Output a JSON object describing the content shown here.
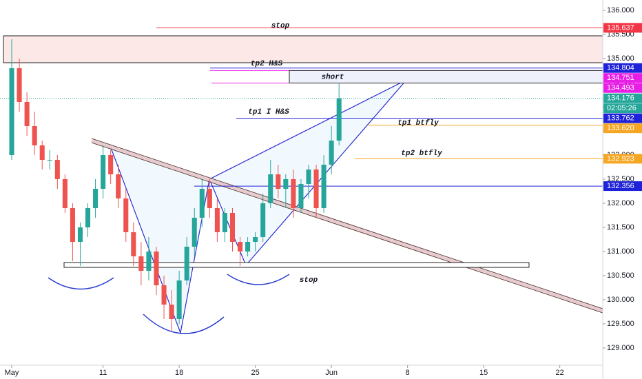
{
  "chart_data": {
    "type": "candlestick",
    "up_color": "#26a69a",
    "down_color": "#ef5350",
    "x": [
      0,
      0.5,
      1,
      1.5,
      2,
      2.5,
      3,
      3.5,
      4,
      4.5,
      5,
      5.5,
      6,
      6.5,
      7,
      7.5,
      8,
      8.5,
      9,
      9.5,
      10,
      10.5,
      11,
      11.5,
      12,
      12.5,
      13,
      13.5,
      14,
      14.5,
      15,
      15.5,
      16,
      16.5,
      17,
      17.5,
      18,
      18.5,
      19,
      19.5,
      20,
      20.5,
      21,
      21.5
    ],
    "open": [
      133.0,
      134.8,
      134.1,
      133.6,
      133.2,
      132.9,
      132.9,
      132.5,
      131.9,
      131.2,
      131.5,
      131.9,
      132.3,
      133.0,
      132.6,
      132.1,
      131.4,
      130.9,
      130.6,
      131.0,
      130.3,
      129.9,
      129.6,
      130.4,
      131.1,
      131.7,
      132.3,
      131.9,
      131.4,
      131.8,
      131.2,
      131.0,
      131.2,
      131.3,
      132.0,
      132.6,
      132.3,
      132.5,
      131.9,
      132.4,
      132.7,
      131.9,
      132.8,
      133.3
    ],
    "high": [
      135.4,
      135.0,
      134.3,
      133.9,
      133.3,
      133.1,
      133.0,
      132.6,
      132.0,
      131.6,
      132.0,
      132.5,
      133.2,
      133.1,
      132.8,
      132.3,
      131.6,
      131.2,
      131.3,
      131.1,
      130.5,
      130.2,
      130.6,
      131.3,
      131.9,
      132.5,
      132.5,
      132.1,
      131.9,
      131.9,
      131.3,
      131.3,
      131.4,
      132.2,
      132.9,
      132.8,
      132.6,
      132.7,
      132.5,
      132.8,
      132.8,
      133.0,
      133.6,
      134.5
    ],
    "low": [
      132.9,
      133.9,
      133.4,
      133.0,
      132.7,
      132.7,
      132.3,
      131.8,
      130.8,
      130.7,
      131.3,
      131.7,
      132.1,
      132.4,
      131.9,
      131.2,
      130.7,
      130.3,
      130.4,
      130.1,
      129.6,
      129.35,
      129.5,
      130.3,
      130.9,
      131.5,
      131.7,
      131.2,
      131.2,
      131.0,
      130.7,
      130.9,
      131.0,
      131.2,
      131.9,
      132.1,
      131.9,
      131.7,
      131.8,
      132.1,
      131.7,
      131.8,
      132.6,
      133.2
    ],
    "close": [
      134.8,
      134.1,
      133.6,
      133.2,
      132.9,
      132.9,
      132.5,
      131.9,
      131.2,
      131.5,
      131.9,
      132.3,
      133.0,
      132.6,
      132.1,
      131.4,
      130.9,
      130.6,
      131.0,
      130.3,
      129.9,
      129.6,
      130.4,
      131.1,
      131.7,
      132.3,
      131.9,
      131.4,
      131.8,
      131.2,
      131.0,
      131.2,
      131.3,
      132.0,
      132.6,
      132.3,
      132.5,
      131.9,
      132.4,
      132.7,
      131.9,
      132.8,
      133.3,
      134.176
    ],
    "xlim": [
      -0.77,
      38.82
    ],
    "xticks": [
      {
        "value": 0,
        "label": "May"
      },
      {
        "value": 6,
        "label": "11"
      },
      {
        "value": 11,
        "label": "18"
      },
      {
        "value": 16,
        "label": "25"
      },
      {
        "value": 21,
        "label": "Jun"
      },
      {
        "value": 26,
        "label": "8"
      },
      {
        "value": 31,
        "label": "15"
      },
      {
        "value": 36,
        "label": "22"
      }
    ],
    "ylim": [
      128.643,
      136.214
    ],
    "yticks": [
      {
        "value": 129,
        "label": "129.000"
      },
      {
        "value": 129.5,
        "label": "129.500"
      },
      {
        "value": 130,
        "label": "130.000"
      },
      {
        "value": 130.5,
        "label": "130.500"
      },
      {
        "value": 131,
        "label": "131.000"
      },
      {
        "value": 131.5,
        "label": "131.500"
      },
      {
        "value": 132,
        "label": "132.000"
      },
      {
        "value": 132.5,
        "label": "132.500"
      },
      {
        "value": 133,
        "label": "133.000"
      },
      {
        "value": 133.5,
        "label": "133.500"
      },
      {
        "value": 134,
        "label": "134.000"
      },
      {
        "value": 134.5,
        "label": "134.500"
      },
      {
        "value": 135,
        "label": "135.000"
      },
      {
        "value": 135.5,
        "label": "135.500"
      },
      {
        "value": 136,
        "label": "136.000"
      }
    ],
    "levels": [
      {
        "price": {
          "value": 135.637,
          "label": "135.637"
        },
        "color": "#f23645",
        "text": "stop"
      },
      {
        "price": {
          "value": 134.804,
          "label": "134.804"
        },
        "color": "#1e22d8",
        "text": "tp2 H&S"
      },
      {
        "price": {
          "value": 134.751,
          "label": "134.751"
        },
        "color": "#e91ee6"
      },
      {
        "price": {
          "value": 134.493,
          "label": "134.493"
        },
        "color": "#e91ee6"
      },
      {
        "price": {
          "value": 134.176,
          "label": "134.176"
        },
        "color": "#26a69a",
        "countdown": "02:05:26"
      },
      {
        "price": {
          "value": 133.762,
          "label": "133.762"
        },
        "color": "#1e22d8",
        "text": "tp1 I H&S"
      },
      {
        "price": {
          "value": 133.62,
          "label": "133.620"
        },
        "color": "#f5a623",
        "text": "tp1 btfly"
      },
      {
        "price": {
          "value": 132.923,
          "label": "132.923"
        },
        "color": "#f5a623",
        "text": "tp2 btfly"
      },
      {
        "price": {
          "value": 132.356,
          "label": "132.356"
        },
        "color": "#1e22d8"
      }
    ],
    "annotations": [
      "short",
      "stop"
    ]
  }
}
